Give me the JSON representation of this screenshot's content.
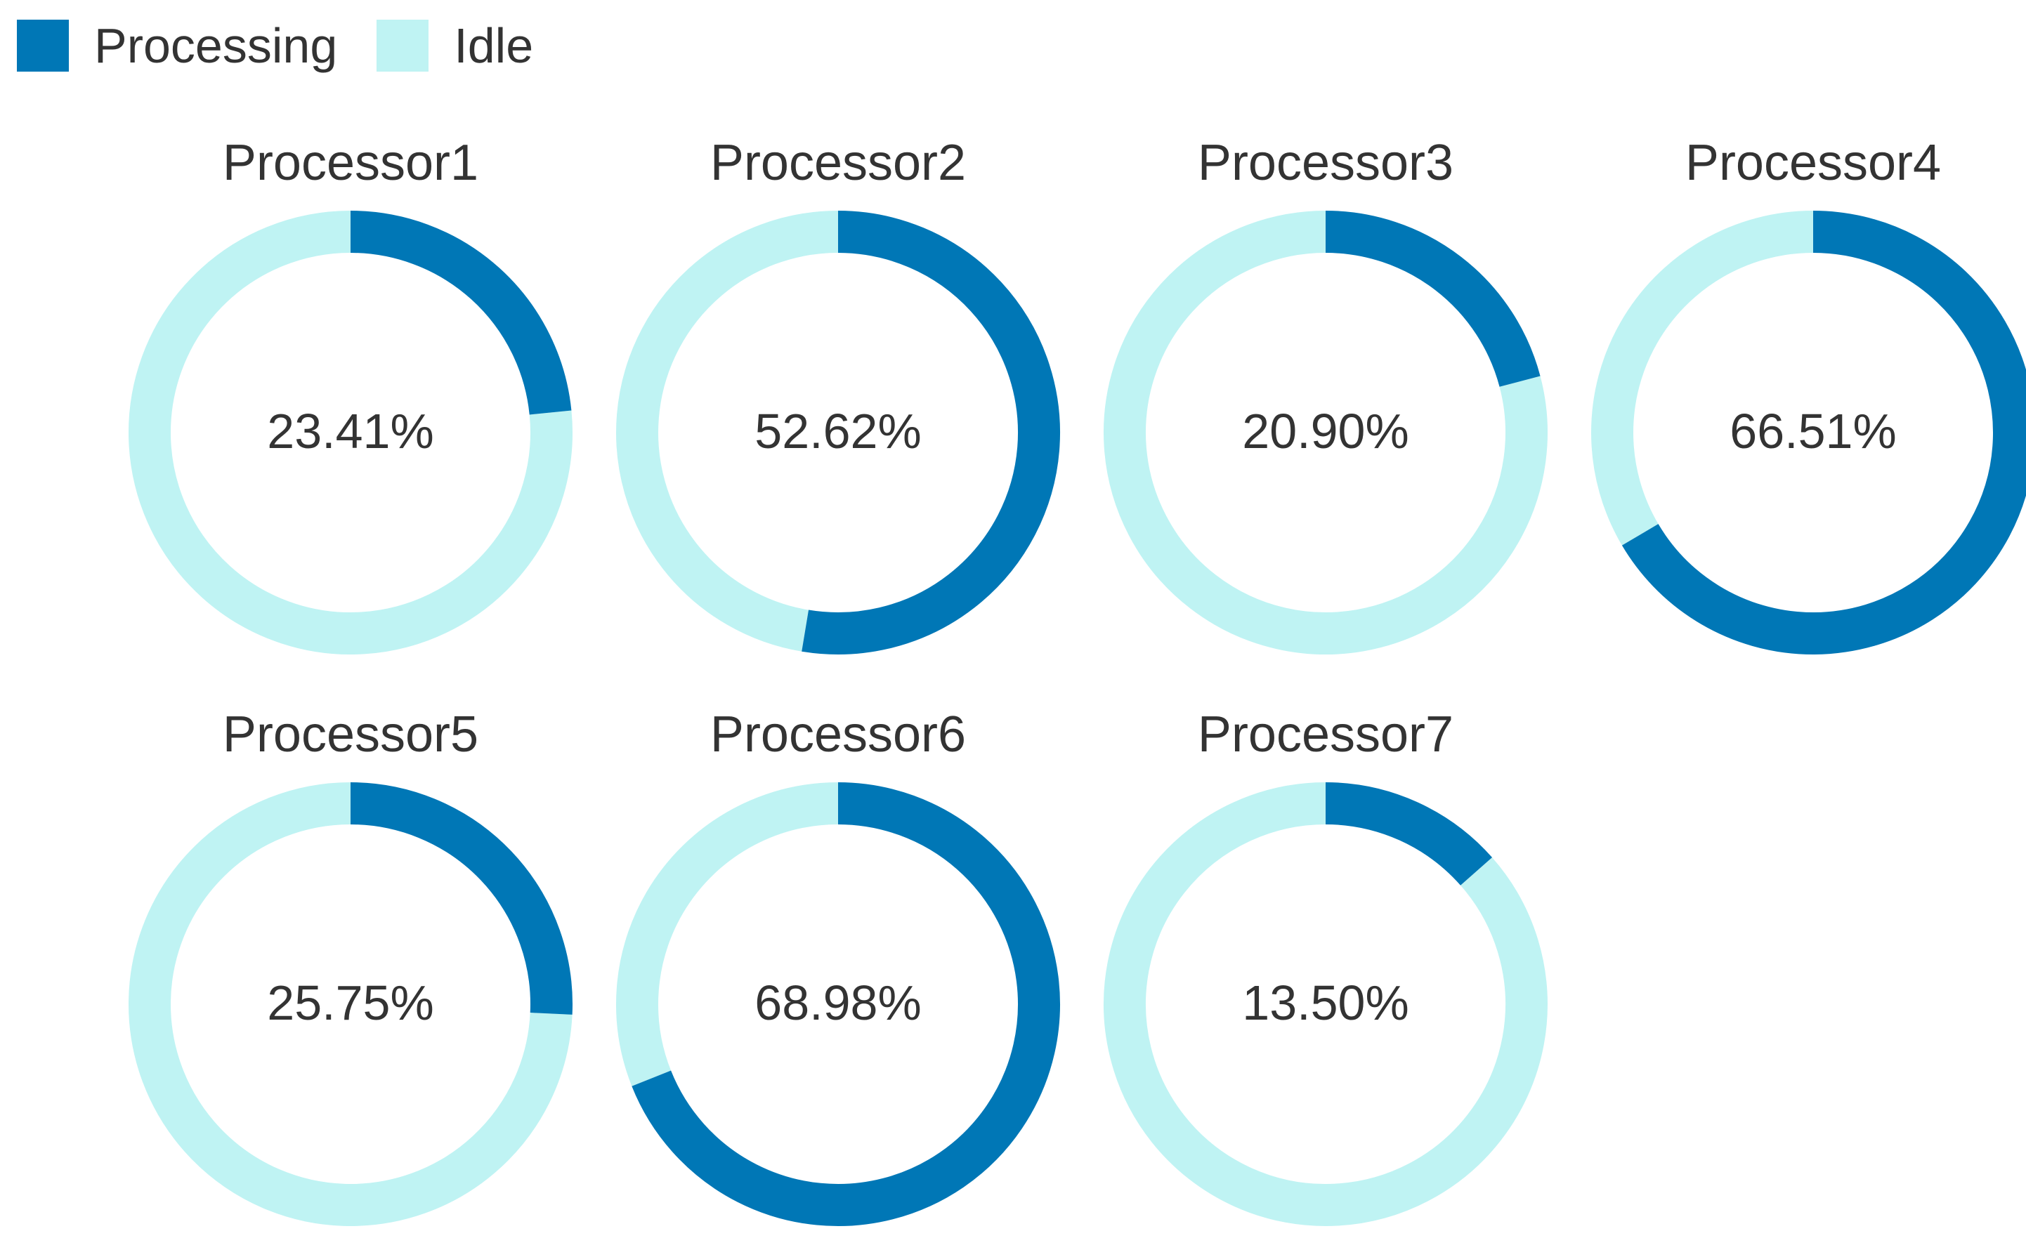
{
  "chart_data": {
    "type": "pie",
    "variant": "donut-small-multiples",
    "legend": {
      "placement": "top-left",
      "entries": [
        {
          "label": "Processing",
          "color": "#0077b6"
        },
        {
          "label": "Idle",
          "color": "#bff3f3"
        }
      ]
    },
    "series_colors": {
      "processing": "#0077b6",
      "idle": "#bff3f3"
    },
    "charts": [
      {
        "title": "Processor1",
        "processing": 23.41,
        "idle": 76.59,
        "label": "23.41%"
      },
      {
        "title": "Processor2",
        "processing": 52.62,
        "idle": 47.38,
        "label": "52.62%"
      },
      {
        "title": "Processor3",
        "processing": 20.9,
        "idle": 79.1,
        "label": "20.90%"
      },
      {
        "title": "Processor4",
        "processing": 66.51,
        "idle": 33.49,
        "label": "66.51%"
      },
      {
        "title": "Processor5",
        "processing": 25.75,
        "idle": 74.25,
        "label": "25.75%"
      },
      {
        "title": "Processor6",
        "processing": 68.98,
        "idle": 31.02,
        "label": "68.98%"
      },
      {
        "title": "Processor7",
        "processing": 13.5,
        "idle": 86.5,
        "label": "13.50%"
      }
    ]
  }
}
